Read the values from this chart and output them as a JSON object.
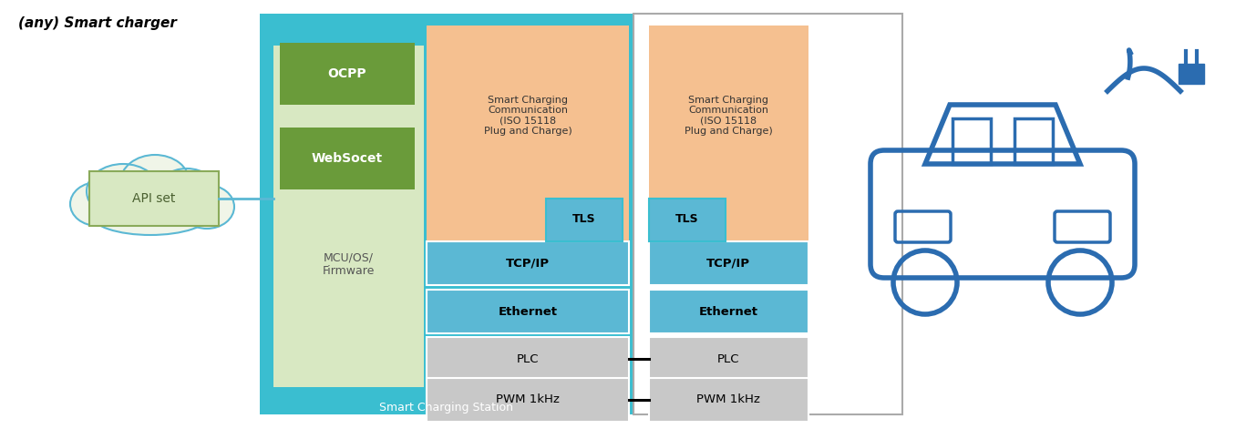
{
  "title": "(any) Smart charger",
  "station_label": "Smart Charging Station",
  "cloud_label": "API set",
  "bg_color": "#ffffff",
  "teal_border": "#3ABED0",
  "light_green_bg": "#D8E8C2",
  "orange_bg": "#F5C090",
  "blue_box": "#5BB8D4",
  "green_box": "#6A9B3A",
  "gray_box": "#C8C8C8",
  "cloud_fill": "#F0F5E8",
  "cloud_stroke": "#5BB8D4",
  "car_color": "#2B6CB0",
  "conn_color": "#000000",
  "smart_charging_text": "Smart Charging\nCommunication\n(ISO 15118\nPlug and Charge)",
  "mcu_text": "MCU/OS/\nFirmware",
  "ocpp_text": "OCPP",
  "websocket_text": "WebSocet",
  "tls_text": "TLS",
  "tcpip_text": "TCP/IP",
  "ethernet_text": "Ethernet",
  "plc_text": "PLC",
  "pwm_text": "PWM 1kHz",
  "fig_w": 13.67,
  "fig_h": 4.71,
  "dpi": 100
}
